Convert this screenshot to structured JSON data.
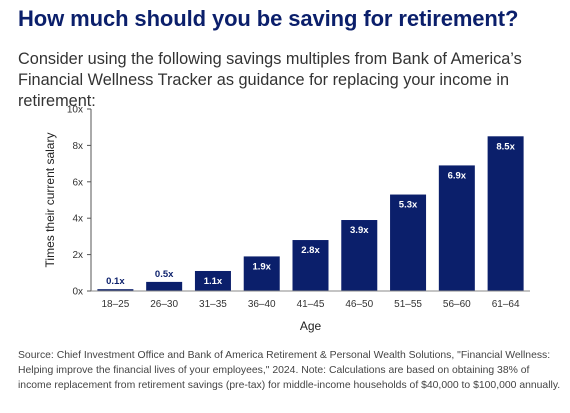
{
  "title": "How much should you be saving for retirement?",
  "subtitle": "Consider using the following savings multiples from Bank of America’s Financial Wellness Tracker as guidance for replacing your income in retirement:",
  "source": "Source: Chief Investment Office and Bank of America Retirement & Personal Wealth Solutions, \"Financial Wellness: Helping improve the financial lives of your employees,\" 2024. Note: Calculations are based on obtaining 38% of income replacement from retirement savings (pre-tax) for middle-income households of $40,000 to $100,000 annually.",
  "colors": {
    "bar": "#0b1f6b",
    "title": "#0b1f6b"
  },
  "chart_data": {
    "type": "bar",
    "title": "",
    "xlabel": "Age",
    "ylabel": "Times their current salary",
    "ylim": [
      0,
      10
    ],
    "yticks": [
      0,
      2,
      4,
      6,
      8,
      10
    ],
    "ytick_labels": [
      "0x",
      "2x",
      "4x",
      "6x",
      "8x",
      "10x"
    ],
    "grid": false,
    "categories": [
      "18–25",
      "26–30",
      "31–35",
      "36–40",
      "41–45",
      "46–50",
      "51–55",
      "56–60",
      "61–64"
    ],
    "values": [
      0.1,
      0.5,
      1.1,
      1.9,
      2.8,
      3.9,
      5.3,
      6.9,
      8.5
    ],
    "value_labels": [
      "0.1x",
      "0.5x",
      "1.1x",
      "1.9x",
      "2.8x",
      "3.9x",
      "5.3x",
      "6.9x",
      "8.5x"
    ]
  }
}
